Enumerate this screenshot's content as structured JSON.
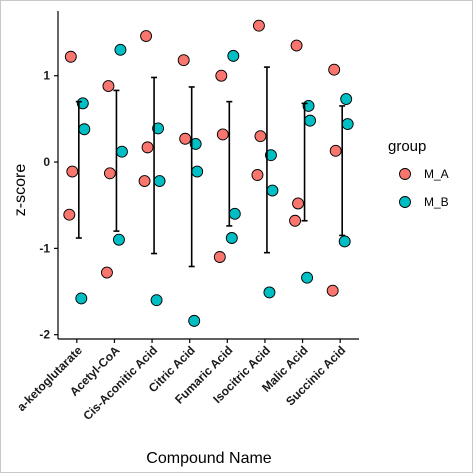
{
  "chart_data": {
    "type": "scatter",
    "title": "",
    "xlabel": "Compound Name",
    "ylabel": "z-score",
    "ylim": [
      -2.05,
      1.75
    ],
    "yticks": [
      -2,
      -1,
      0,
      1
    ],
    "grid": false,
    "legend": {
      "title": "group",
      "placement": "right"
    },
    "categories": [
      "a-ketoglutarate",
      "Acetyl-CoA",
      "Cis-Aconitic Acid",
      "Citric Acid",
      "Fumaric Acid",
      "Isocitric Acid",
      "Malic Acid",
      "Succinic Acid"
    ],
    "series": [
      {
        "name": "M_A",
        "color": "#F8766D",
        "points": [
          {
            "x": "a-ketoglutarate",
            "y": 1.22
          },
          {
            "x": "a-ketoglutarate",
            "y": -0.11
          },
          {
            "x": "a-ketoglutarate",
            "y": -0.61
          },
          {
            "x": "Acetyl-CoA",
            "y": 0.88
          },
          {
            "x": "Acetyl-CoA",
            "y": -0.13
          },
          {
            "x": "Acetyl-CoA",
            "y": -1.28
          },
          {
            "x": "Cis-Aconitic Acid",
            "y": 1.46
          },
          {
            "x": "Cis-Aconitic Acid",
            "y": 0.17
          },
          {
            "x": "Cis-Aconitic Acid",
            "y": -0.22
          },
          {
            "x": "Citric Acid",
            "y": 1.18
          },
          {
            "x": "Citric Acid",
            "y": 0.27
          },
          {
            "x": "Fumaric Acid",
            "y": 1.0
          },
          {
            "x": "Fumaric Acid",
            "y": 0.32
          },
          {
            "x": "Fumaric Acid",
            "y": -1.1
          },
          {
            "x": "Isocitric Acid",
            "y": 1.58
          },
          {
            "x": "Isocitric Acid",
            "y": 0.3
          },
          {
            "x": "Isocitric Acid",
            "y": -0.15
          },
          {
            "x": "Malic Acid",
            "y": 1.35
          },
          {
            "x": "Malic Acid",
            "y": -0.48
          },
          {
            "x": "Malic Acid",
            "y": -0.68
          },
          {
            "x": "Succinic Acid",
            "y": 1.07
          },
          {
            "x": "Succinic Acid",
            "y": 0.13
          },
          {
            "x": "Succinic Acid",
            "y": -1.49
          }
        ]
      },
      {
        "name": "M_B",
        "color": "#00BFC4",
        "points": [
          {
            "x": "a-ketoglutarate",
            "y": 0.68
          },
          {
            "x": "a-ketoglutarate",
            "y": 0.38
          },
          {
            "x": "a-ketoglutarate",
            "y": -1.58
          },
          {
            "x": "Acetyl-CoA",
            "y": 1.3
          },
          {
            "x": "Acetyl-CoA",
            "y": 0.12
          },
          {
            "x": "Acetyl-CoA",
            "y": -0.9
          },
          {
            "x": "Cis-Aconitic Acid",
            "y": 0.39
          },
          {
            "x": "Cis-Aconitic Acid",
            "y": -0.22
          },
          {
            "x": "Cis-Aconitic Acid",
            "y": -1.6
          },
          {
            "x": "Citric Acid",
            "y": 0.21
          },
          {
            "x": "Citric Acid",
            "y": -0.11
          },
          {
            "x": "Citric Acid",
            "y": -1.84
          },
          {
            "x": "Fumaric Acid",
            "y": 1.23
          },
          {
            "x": "Fumaric Acid",
            "y": -0.6
          },
          {
            "x": "Fumaric Acid",
            "y": -0.88
          },
          {
            "x": "Isocitric Acid",
            "y": 0.08
          },
          {
            "x": "Isocitric Acid",
            "y": -0.33
          },
          {
            "x": "Isocitric Acid",
            "y": -1.51
          },
          {
            "x": "Malic Acid",
            "y": 0.65
          },
          {
            "x": "Malic Acid",
            "y": 0.48
          },
          {
            "x": "Malic Acid",
            "y": -1.34
          },
          {
            "x": "Succinic Acid",
            "y": 0.73
          },
          {
            "x": "Succinic Acid",
            "y": 0.44
          },
          {
            "x": "Succinic Acid",
            "y": -0.92
          }
        ]
      }
    ],
    "error_bars": [
      {
        "x": "a-ketoglutarate",
        "mean": -0.09,
        "lower": -0.88,
        "upper": 0.7
      },
      {
        "x": "Acetyl-CoA",
        "mean": 0.17,
        "lower": -0.8,
        "upper": 0.83
      },
      {
        "x": "Cis-Aconitic Acid",
        "mean": 0.0,
        "lower": -1.06,
        "upper": 0.98
      },
      {
        "x": "Citric Acid",
        "mean": -0.06,
        "lower": -1.21,
        "upper": 0.87
      },
      {
        "x": "Fumaric Acid",
        "mean": 0.0,
        "lower": -0.74,
        "upper": 0.7
      },
      {
        "x": "Isocitric Acid",
        "mean": 0.0,
        "lower": -1.05,
        "upper": 1.1
      },
      {
        "x": "Malic Acid",
        "mean": 0.0,
        "lower": -0.68,
        "upper": 0.68
      },
      {
        "x": "Succinic Acid",
        "mean": 0.0,
        "lower": -0.85,
        "upper": 0.65
      }
    ]
  }
}
